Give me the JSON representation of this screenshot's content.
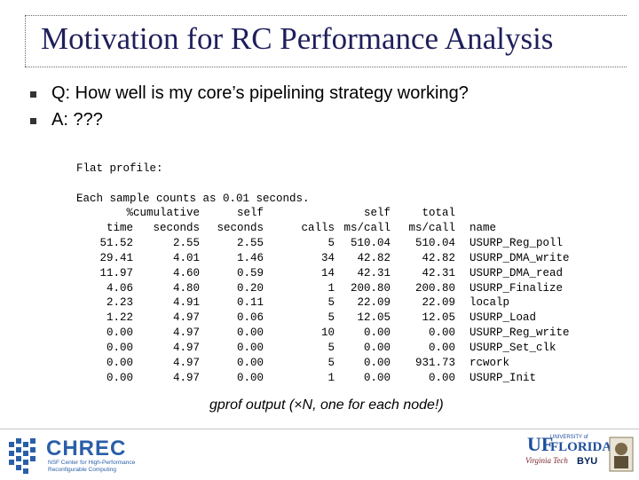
{
  "slide": {
    "title": "Motivation for RC Performance Analysis",
    "bullets": [
      {
        "text": "Q: How well is my core’s pipelining strategy working?"
      },
      {
        "text": "A: ???"
      }
    ],
    "caption": "gprof output (×N, one for each node!)"
  },
  "profile": {
    "heading": "Flat profile:",
    "sample_note": "Each sample counts as 0.01 seconds.",
    "header_line1": [
      "%",
      "cumulative",
      "self",
      "",
      "self",
      "total",
      ""
    ],
    "header_line2": [
      "time",
      "seconds",
      "seconds",
      "calls",
      "ms/call",
      "ms/call",
      "name"
    ],
    "rows": [
      [
        "51.52",
        "2.55",
        "2.55",
        "5",
        "510.04",
        "510.04",
        "USURP_Reg_poll"
      ],
      [
        "29.41",
        "4.01",
        "1.46",
        "34",
        "42.82",
        "42.82",
        "USURP_DMA_write"
      ],
      [
        "11.97",
        "4.60",
        "0.59",
        "14",
        "42.31",
        "42.31",
        "USURP_DMA_read"
      ],
      [
        "4.06",
        "4.80",
        "0.20",
        "1",
        "200.80",
        "200.80",
        "USURP_Finalize"
      ],
      [
        "2.23",
        "4.91",
        "0.11",
        "5",
        "22.09",
        "22.09",
        "localp"
      ],
      [
        "1.22",
        "4.97",
        "0.06",
        "5",
        "12.05",
        "12.05",
        "USURP_Load"
      ],
      [
        "0.00",
        "4.97",
        "0.00",
        "10",
        "0.00",
        "0.00",
        "USURP_Reg_write"
      ],
      [
        "0.00",
        "4.97",
        "0.00",
        "5",
        "0.00",
        "0.00",
        "USURP_Set_clk"
      ],
      [
        "0.00",
        "4.97",
        "0.00",
        "5",
        "0.00",
        "931.73",
        "rcwork"
      ],
      [
        "0.00",
        "4.97",
        "0.00",
        "1",
        "0.00",
        "0.00",
        "USURP_Init"
      ]
    ]
  },
  "footer": {
    "chrec_name": "CHREC",
    "chrec_line1": "NSF Center for High-Performance",
    "chrec_line2": "Reconfigurable Computing",
    "uf_mark": "UF",
    "uf_university_of": "UNIVERSITY of",
    "uf_florida": "FLORIDA",
    "vt_text": "Virginia Tech",
    "byu": "BYU",
    "brand_blue": "#2a5fa8",
    "title_color": "#1f1f5c"
  }
}
